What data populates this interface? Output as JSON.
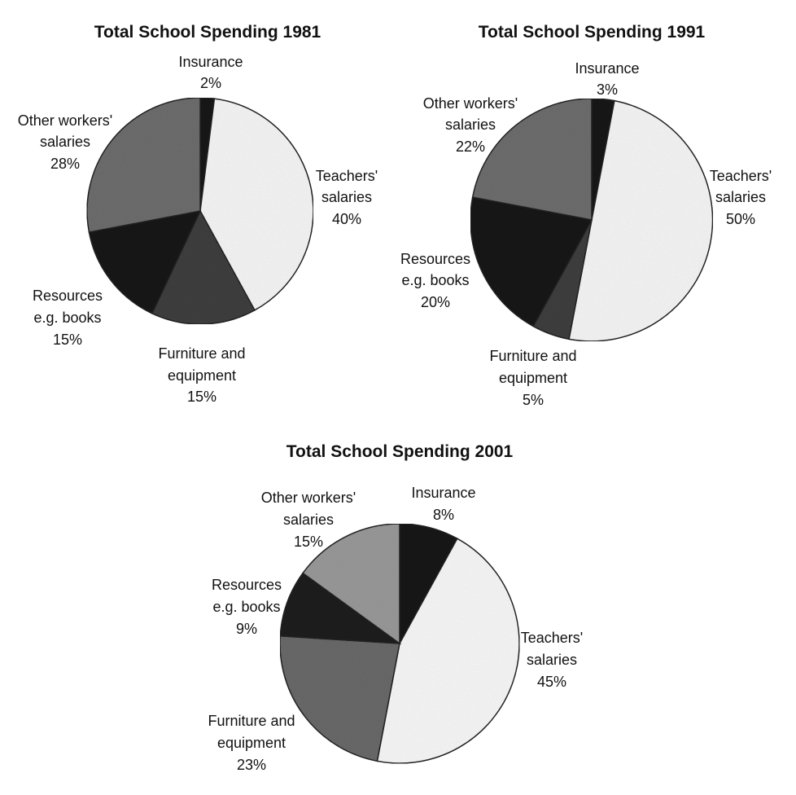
{
  "chart_data": [
    {
      "type": "pie",
      "title": "Total School Spending 1981",
      "slices": [
        {
          "label": [
            "Insurance"
          ],
          "value": 2,
          "value_label": "2%",
          "color": "#1a1a1a"
        },
        {
          "label": [
            "Teachers'",
            "salaries"
          ],
          "value": 40,
          "value_label": "40%",
          "color": "#f7f7f7"
        },
        {
          "label": [
            "Furniture and",
            "equipment"
          ],
          "value": 15,
          "value_label": "15%",
          "color": "#3f3f3f"
        },
        {
          "label": [
            "Resources",
            "e.g. books"
          ],
          "value": 15,
          "value_label": "15%",
          "color": "#181818"
        },
        {
          "label": [
            "Other workers'",
            "salaries"
          ],
          "value": 28,
          "value_label": "28%",
          "color": "#6e6e6e"
        }
      ]
    },
    {
      "type": "pie",
      "title": "Total School Spending 1991",
      "slices": [
        {
          "label": [
            "Insurance"
          ],
          "value": 3,
          "value_label": "3%",
          "color": "#1a1a1a"
        },
        {
          "label": [
            "Teachers'",
            "salaries"
          ],
          "value": 50,
          "value_label": "50%",
          "color": "#f7f7f7"
        },
        {
          "label": [
            "Furniture and",
            "equipment"
          ],
          "value": 5,
          "value_label": "5%",
          "color": "#3f3f3f"
        },
        {
          "label": [
            "Resources",
            "e.g. books"
          ],
          "value": 20,
          "value_label": "20%",
          "color": "#181818"
        },
        {
          "label": [
            "Other workers'",
            "salaries"
          ],
          "value": 22,
          "value_label": "22%",
          "color": "#6e6e6e"
        }
      ]
    },
    {
      "type": "pie",
      "title": "Total School Spending 2001",
      "slices": [
        {
          "label": [
            "Insurance"
          ],
          "value": 8,
          "value_label": "8%",
          "color": "#141414"
        },
        {
          "label": [
            "Teachers'",
            "salaries"
          ],
          "value": 45,
          "value_label": "45%",
          "color": "#f9f9f9"
        },
        {
          "label": [
            "Furniture and",
            "equipment"
          ],
          "value": 23,
          "value_label": "23%",
          "color": "#6a6a6a"
        },
        {
          "label": [
            "Resources",
            "e.g. books"
          ],
          "value": 9,
          "value_label": "9%",
          "color": "#1e1e1e"
        },
        {
          "label": [
            "Other workers'",
            "salaries"
          ],
          "value": 15,
          "value_label": "15%",
          "color": "#9a9a9a"
        }
      ]
    }
  ]
}
